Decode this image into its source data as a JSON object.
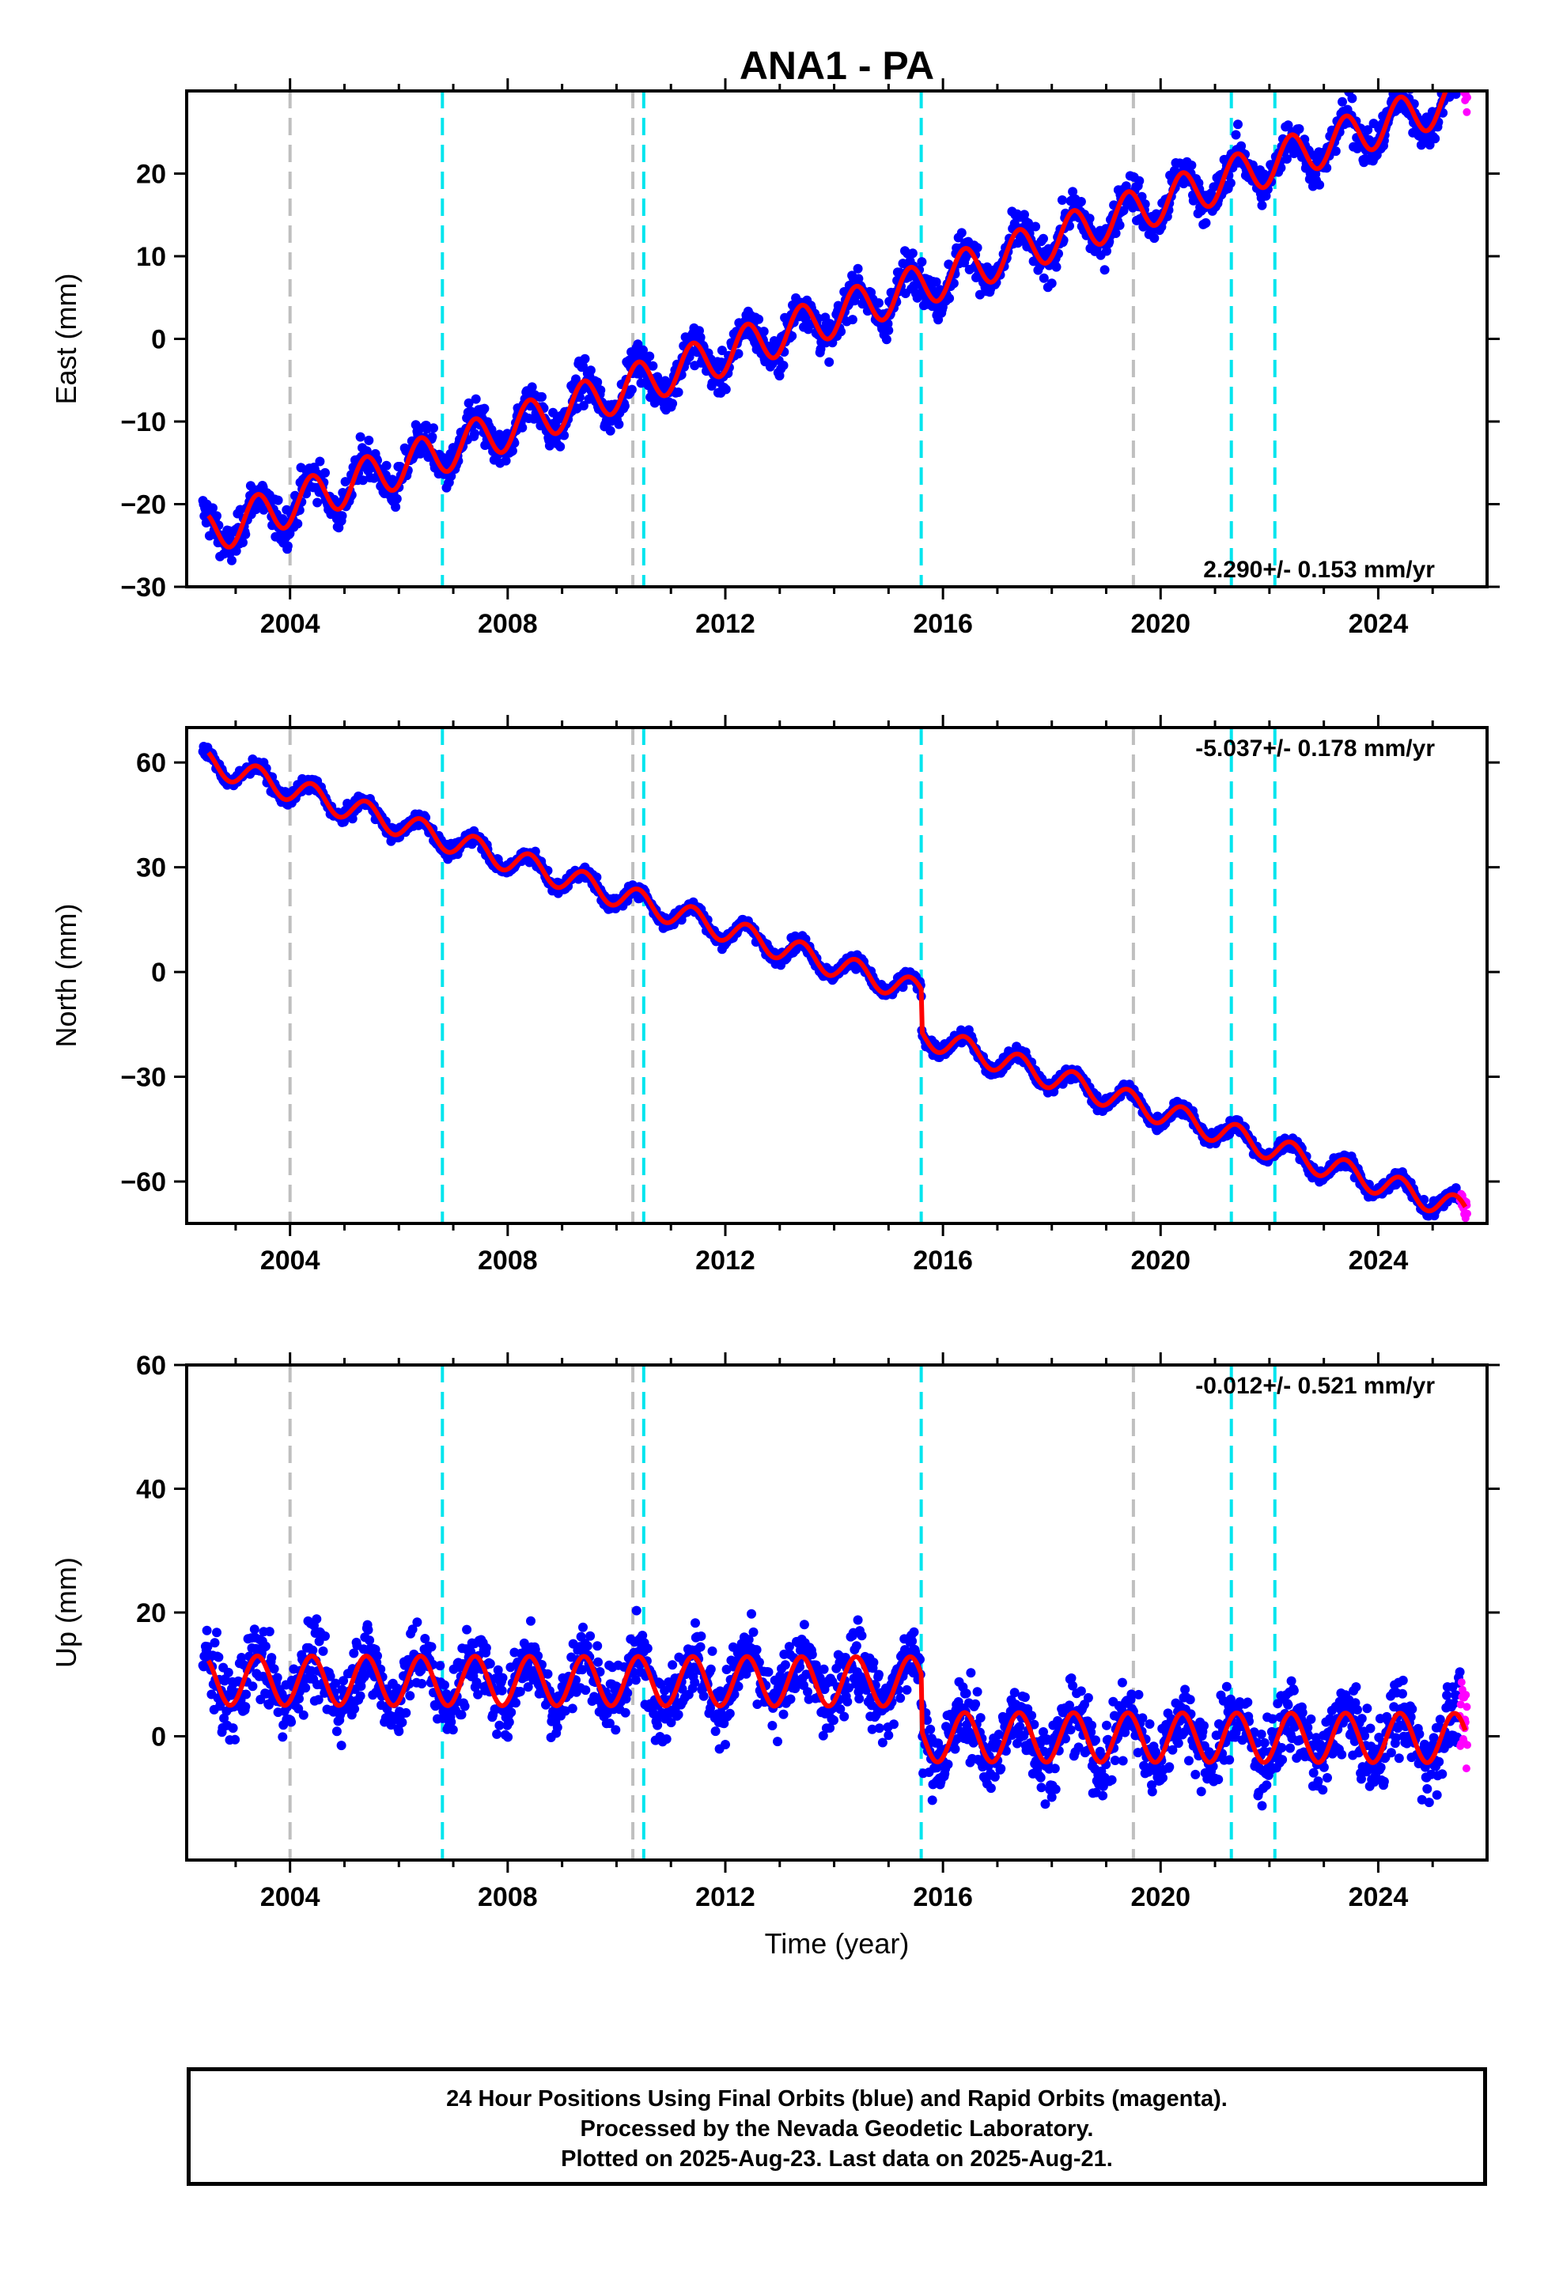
{
  "title": "ANA1 - PA",
  "colors": {
    "final_orbits": "#0000ff",
    "rapid_orbits": "#ff00ff",
    "model_fit": "#ff0000",
    "equipment_change": "#bfbfbf",
    "earthquake_event": "#00e5ee"
  },
  "footer": {
    "line1": "24 Hour Positions Using Final Orbits (blue) and Rapid Orbits (magenta).",
    "line2": "Processed by the Nevada Geodetic Laboratory.",
    "line3": "Plotted on 2025-Aug-23. Last data on 2025-Aug-21."
  },
  "chart_data": [
    {
      "type": "scatter",
      "panel": "east",
      "title": "ANA1 - PA",
      "xlabel": "",
      "ylabel": "East (mm)",
      "xlim": [
        2002.1,
        2026.0
      ],
      "ylim": [
        -30,
        30
      ],
      "xticks": [
        2004,
        2008,
        2012,
        2016,
        2020,
        2024
      ],
      "yticks": [
        -30,
        -20,
        -10,
        0,
        10,
        20
      ],
      "rate_label": "2.290+/- 0.153 mm/yr",
      "trend": {
        "start_year": 2002.5,
        "start_value": -23.5,
        "rate": 2.29
      },
      "seasonal_amplitude": 2.6,
      "scatter_spread": 3.0,
      "event_lines": {
        "gray": [
          2004.0,
          2010.3,
          2019.5
        ],
        "cyan": [
          2006.8,
          2010.5,
          2015.6,
          2021.3,
          2022.1
        ]
      },
      "series": [
        {
          "name": "Final Orbits (blue)",
          "x_range": [
            2002.4,
            2025.5
          ]
        },
        {
          "name": "Rapid Orbits (magenta)",
          "x_range": [
            2025.5,
            2025.64
          ]
        }
      ]
    },
    {
      "type": "scatter",
      "panel": "north",
      "xlabel": "",
      "ylabel": "North (mm)",
      "xlim": [
        2002.1,
        2026.0
      ],
      "ylim": [
        -72,
        70
      ],
      "xticks": [
        2004,
        2008,
        2012,
        2016,
        2020,
        2024
      ],
      "yticks": [
        -60,
        -30,
        0,
        30,
        60
      ],
      "rate_label": "-5.037+/- 0.178 mm/yr",
      "trend": {
        "start_year": 2002.5,
        "start_value": 60.0,
        "rate": -5.037
      },
      "offsets": [
        {
          "year": 2015.6,
          "value": -12
        }
      ],
      "seasonal_amplitude": 3.5,
      "scatter_spread": 2.5,
      "event_lines": {
        "gray": [
          2004.0,
          2010.3,
          2019.5
        ],
        "cyan": [
          2006.8,
          2010.5,
          2015.6,
          2021.3,
          2022.1
        ]
      },
      "series": [
        {
          "name": "Final Orbits (blue)",
          "x_range": [
            2002.4,
            2025.5
          ]
        },
        {
          "name": "Rapid Orbits (magenta)",
          "x_range": [
            2025.5,
            2025.64
          ]
        }
      ]
    },
    {
      "type": "scatter",
      "panel": "up",
      "xlabel": "Time (year)",
      "ylabel": "Up (mm)",
      "xlim": [
        2002.1,
        2026.0
      ],
      "ylim": [
        -20,
        60
      ],
      "xticks": [
        2004,
        2008,
        2012,
        2016,
        2020,
        2024
      ],
      "yticks": [
        0,
        20,
        40,
        60
      ],
      "rate_label": "-0.012+/- 0.521 mm/yr",
      "trend": {
        "start_year": 2002.5,
        "start_value": 9.0,
        "rate": -0.012
      },
      "offsets": [
        {
          "year": 2015.6,
          "value": -9
        }
      ],
      "seasonal_amplitude": 4.0,
      "scatter_spread": 7.5,
      "event_lines": {
        "gray": [
          2004.0,
          2010.3,
          2019.5
        ],
        "cyan": [
          2006.8,
          2010.5,
          2015.6,
          2021.3,
          2022.1
        ]
      },
      "series": [
        {
          "name": "Final Orbits (blue)",
          "x_range": [
            2002.4,
            2025.5
          ]
        },
        {
          "name": "Rapid Orbits (magenta)",
          "x_range": [
            2025.5,
            2025.64
          ]
        }
      ]
    }
  ]
}
